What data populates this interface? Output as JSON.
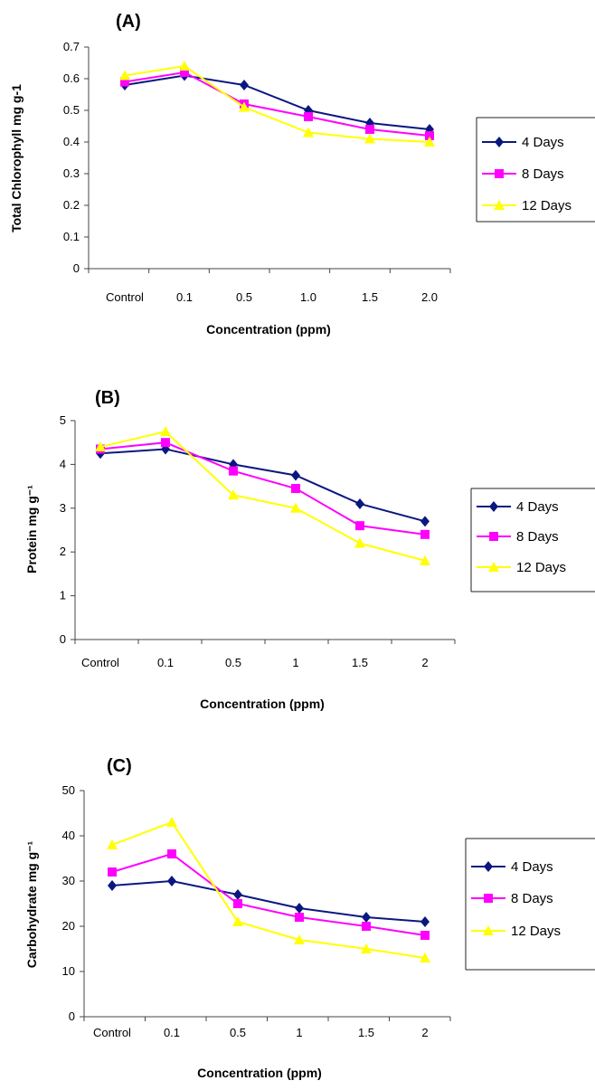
{
  "colors": {
    "4 Days": "#0b1780",
    "8 Days": "#ff00ff",
    "12 Days": "#ffff00",
    "axis": "#444444"
  },
  "chart_data": [
    {
      "panel": "(A)",
      "type": "line",
      "categories": [
        "Control",
        "0.1",
        "0.5",
        "1.0",
        "1.5",
        "2.0"
      ],
      "xlabel": "Concentration (ppm)",
      "ylabel": "Total Chlorophyll mg g-1",
      "ylim": [
        0,
        0.7
      ],
      "y_ticks": [
        "0",
        "0.1",
        "0.2",
        "0.3",
        "0.4",
        "0.5",
        "0.6",
        "0.7"
      ],
      "grid": false,
      "legend_position": "right",
      "series": [
        {
          "name": "4 Days",
          "marker": "diamond",
          "values": [
            0.58,
            0.61,
            0.58,
            0.5,
            0.46,
            0.44
          ]
        },
        {
          "name": "8 Days",
          "marker": "square",
          "values": [
            0.59,
            0.62,
            0.52,
            0.48,
            0.44,
            0.42
          ]
        },
        {
          "name": "12 Days",
          "marker": "triangle",
          "values": [
            0.61,
            0.64,
            0.51,
            0.43,
            0.41,
            0.4
          ]
        }
      ]
    },
    {
      "panel": "(B)",
      "type": "line",
      "categories": [
        "Control",
        "0.1",
        "0.5",
        "1",
        "1.5",
        "2"
      ],
      "xlabel": "Concentration (ppm)",
      "ylabel": "Protein mg g⁻¹",
      "ylim": [
        0,
        5
      ],
      "y_ticks": [
        "0",
        "1",
        "2",
        "3",
        "4",
        "5"
      ],
      "grid": false,
      "legend_position": "right",
      "series": [
        {
          "name": "4 Days",
          "marker": "diamond",
          "values": [
            4.25,
            4.35,
            4.0,
            3.75,
            3.1,
            2.7
          ]
        },
        {
          "name": "8 Days",
          "marker": "square",
          "values": [
            4.35,
            4.5,
            3.85,
            3.45,
            2.6,
            2.4
          ]
        },
        {
          "name": "12 Days",
          "marker": "triangle",
          "values": [
            4.4,
            4.75,
            3.3,
            3.0,
            2.2,
            1.8
          ]
        }
      ]
    },
    {
      "panel": "(C)",
      "type": "line",
      "categories": [
        "Control",
        "0.1",
        "0.5",
        "1",
        "1.5",
        "2"
      ],
      "xlabel": "Concentration (ppm)",
      "ylabel": "Carbohydrate mg g⁻¹",
      "ylim": [
        0,
        50
      ],
      "y_ticks": [
        "0",
        "10",
        "20",
        "30",
        "40",
        "50"
      ],
      "grid": false,
      "legend_position": "right",
      "series": [
        {
          "name": "4 Days",
          "marker": "diamond",
          "values": [
            29,
            30,
            27,
            24,
            22,
            21
          ]
        },
        {
          "name": "8 Days",
          "marker": "square",
          "values": [
            32,
            36,
            25,
            22,
            20,
            18
          ]
        },
        {
          "name": "12 Days",
          "marker": "triangle",
          "values": [
            38,
            43,
            21,
            17,
            15,
            13
          ]
        }
      ]
    }
  ]
}
